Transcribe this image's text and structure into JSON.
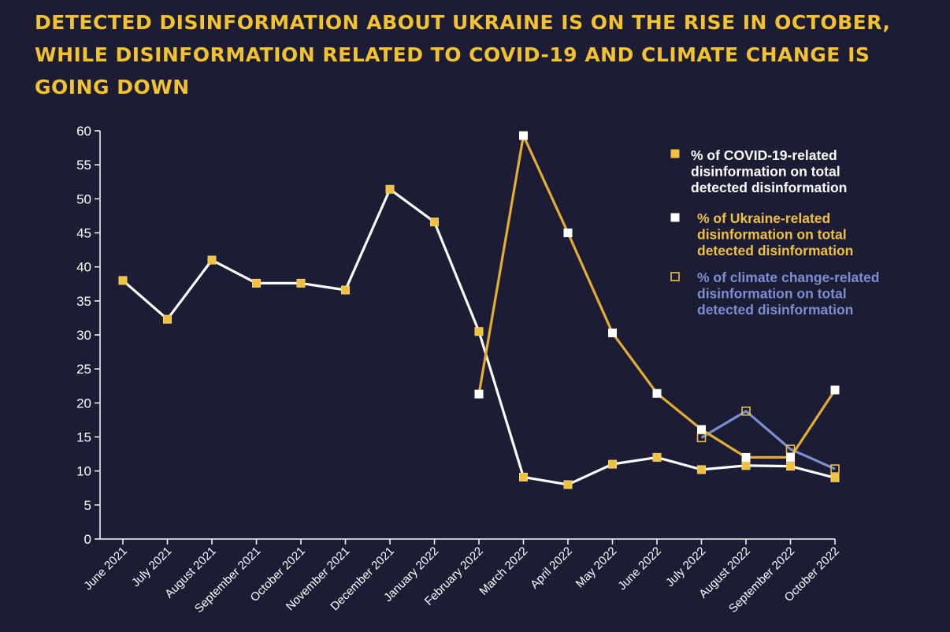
{
  "title": "Detected disinformation about Ukraine is on the rise in October, while disinformation related to  COVID-19 and climate change is going down",
  "colors": {
    "background": "#1c1c35",
    "covid": "#f0c040",
    "covid_line": "#e3ad35",
    "ukraine": "#ffffff",
    "climate": "#7b8fd0",
    "title": "#f2c230"
  },
  "chart_data": {
    "type": "line",
    "title": "Detected disinformation about Ukraine is on the rise in October, while disinformation related to  COVID-19 and climate change is going down",
    "xlabel": "",
    "ylabel": "",
    "ylim": [
      0,
      60
    ],
    "yticks": [
      0,
      5,
      10,
      15,
      20,
      25,
      30,
      35,
      40,
      45,
      50,
      55,
      60
    ],
    "grid": false,
    "legend_position": "top-right",
    "categories": [
      "June 2021",
      "July 2021",
      "August 2021",
      "September 2021",
      "October 2021",
      "November 2021",
      "December 2021",
      "January 2022",
      "February 2022",
      "March 2022",
      "April 2022",
      "May 2022",
      "June 2022",
      "July 2022",
      "August 2022",
      "September 2022",
      "October 2022"
    ],
    "series": [
      {
        "name": "% of COVID-19-related disinformation on total detected disinformation",
        "key": "covid",
        "marker": "filled",
        "values": [
          38,
          32.3,
          41,
          37.6,
          37.6,
          36.6,
          51.4,
          46.6,
          30.5,
          9.1,
          8,
          11,
          12,
          10.2,
          10.8,
          10.7,
          9
        ]
      },
      {
        "name": "% of Ukraine-related disinformation on total detected disinformation",
        "key": "ukraine",
        "marker": "filled",
        "values": [
          null,
          null,
          null,
          null,
          null,
          null,
          null,
          null,
          21.3,
          59.3,
          45,
          30.3,
          21.4,
          16.1,
          12,
          12,
          21.9
        ]
      },
      {
        "name": "% of climate change-related disinformation on total detected disinformation",
        "key": "climate",
        "marker": "hollow",
        "values": [
          null,
          null,
          null,
          null,
          null,
          null,
          null,
          null,
          null,
          null,
          null,
          null,
          null,
          14.9,
          18.8,
          13.2,
          10.3
        ]
      }
    ]
  }
}
